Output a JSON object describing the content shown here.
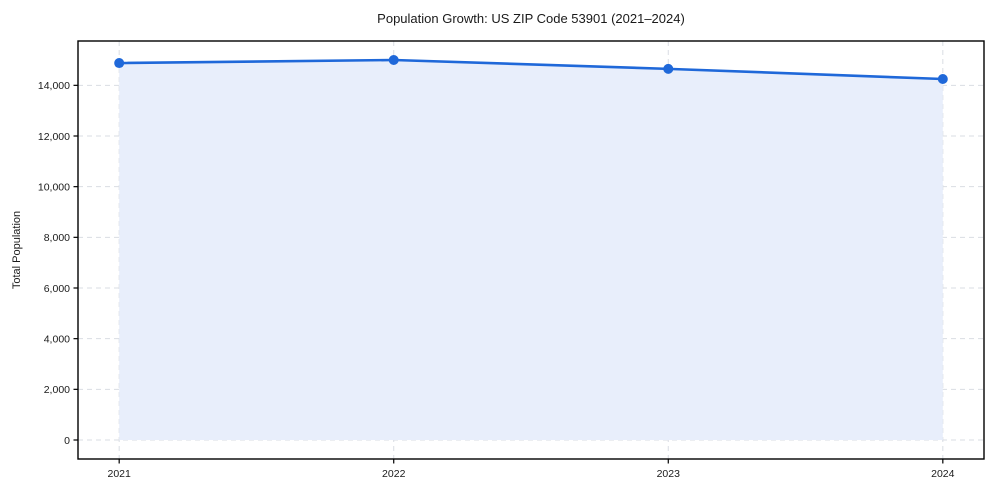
{
  "chart_data": {
    "type": "line",
    "title": "Population Growth: US ZIP Code 53901 (2021–2024)",
    "xlabel": "",
    "ylabel": "Total Population",
    "x": [
      2021,
      2022,
      2023,
      2024
    ],
    "series": [
      {
        "name": "Total Population",
        "values": [
          14880,
          15000,
          14650,
          14250
        ]
      }
    ],
    "area_fill": true,
    "area_baseline": 0,
    "marker": "circle",
    "legend": "none",
    "grid": "dashed both axes",
    "xticks": [
      2021,
      2022,
      2023,
      2024
    ],
    "yticks": [
      0,
      2000,
      4000,
      6000,
      8000,
      10000,
      12000,
      14000
    ],
    "xlim": [
      2020.85,
      2024.15
    ],
    "ylim": [
      -750,
      15750
    ],
    "colors": {
      "line": "#1f68d9",
      "marker": "#1f68d9",
      "fill": "#e8eefb",
      "grid": "#d9dde3",
      "axis": "#000000",
      "text": "#1a1a1a",
      "background": "#ffffff"
    }
  }
}
